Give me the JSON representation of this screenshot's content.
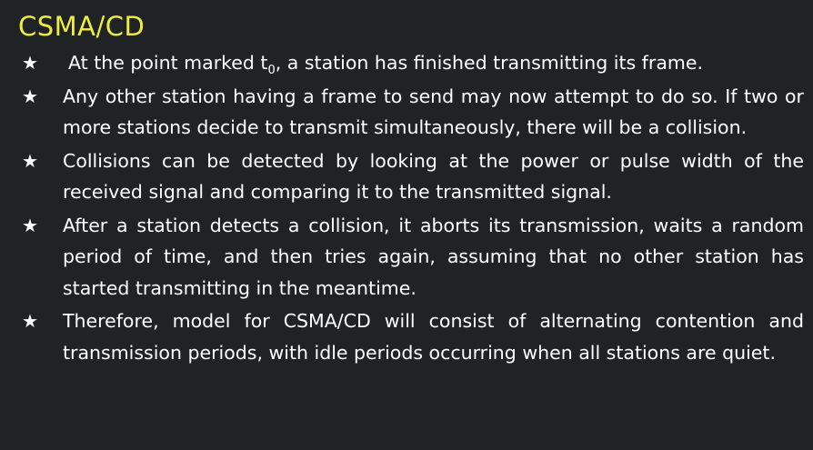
{
  "slide": {
    "title": "CSMA/CD",
    "bullets": [
      {
        "before": "At the point marked t",
        "sub": "0",
        "after": ", a station has finished transmitting its frame."
      },
      {
        "text": "Any other station having a frame to send may now attempt to do so. If two or more stations decide to transmit simultaneously, there will be a collision."
      },
      {
        "text": "Collisions can be detected by looking at the power or pulse width of the received signal and comparing it to the transmitted signal."
      },
      {
        "text": "After a station detects a collision, it aborts its transmission, waits a random period of time, and then tries again, assuming that no other station has started transmitting in the meantime."
      },
      {
        "text": "Therefore, model for CSMA/CD will consist of alternating contention and transmission periods, with idle periods occurring when all stations are quiet."
      }
    ],
    "bullet_symbol": "★",
    "colors": {
      "background": "#1f2325",
      "title": "#f2ec3c",
      "text": "#ffffff"
    }
  }
}
